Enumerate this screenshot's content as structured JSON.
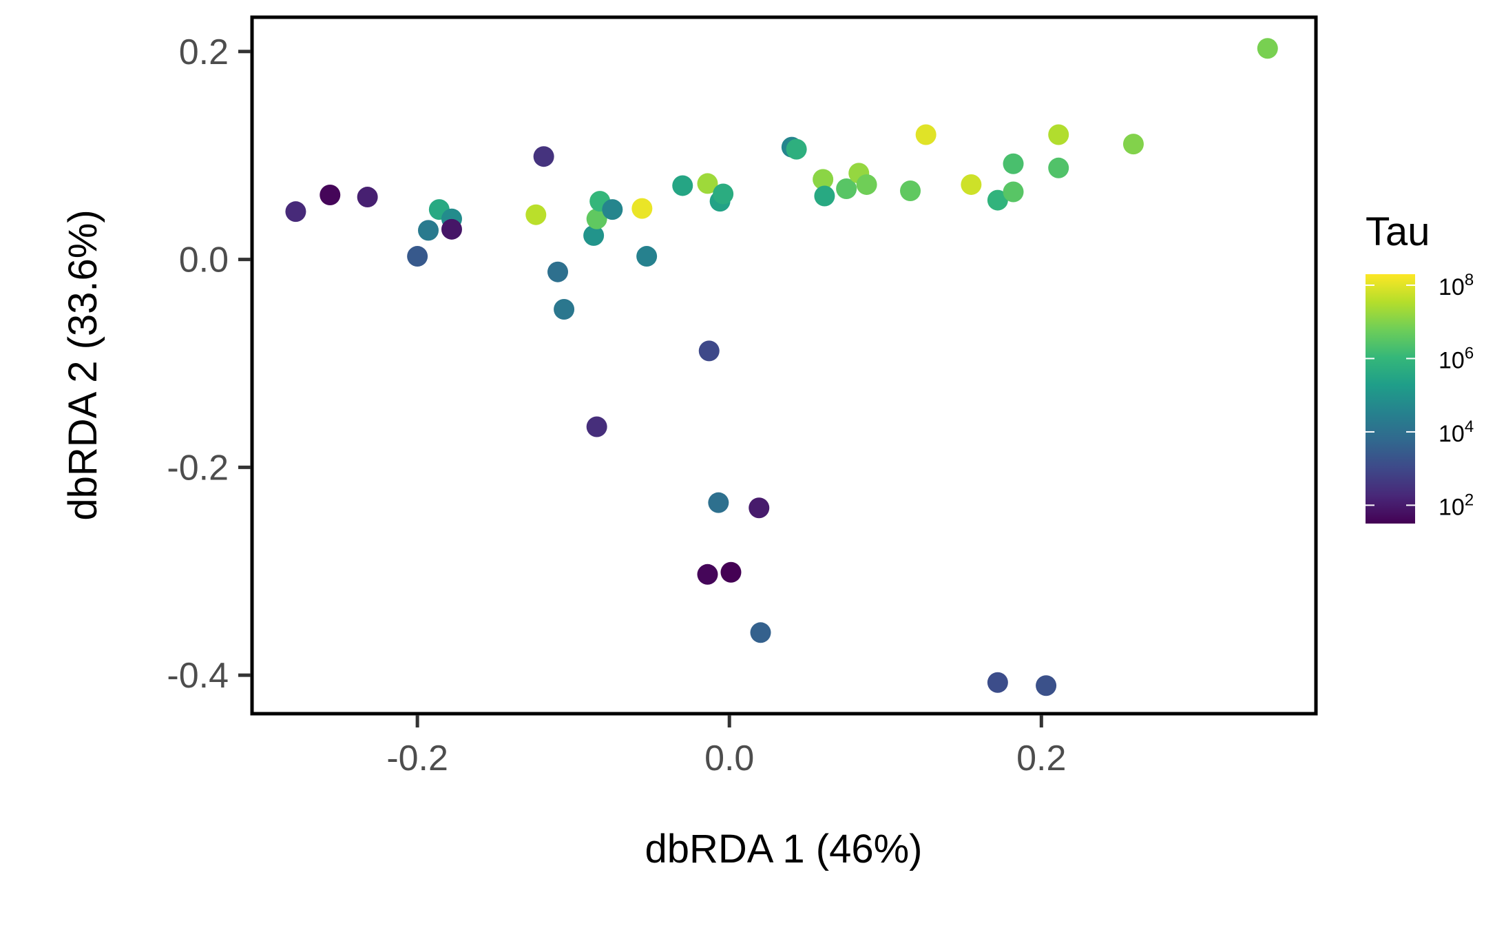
{
  "chart_data": {
    "type": "scatter",
    "title": "",
    "xlabel": "dbRDA 1 (46%)",
    "ylabel": "dbRDA 2 (33.6%)",
    "xlim": [
      -0.306,
      0.376
    ],
    "ylim": [
      -0.437,
      0.233
    ],
    "x_ticks": [
      -0.2,
      0.0,
      0.2
    ],
    "x_tick_labels": [
      "-0.2",
      "0.0",
      "0.2"
    ],
    "y_ticks": [
      0.2,
      0.0,
      -0.2,
      -0.4
    ],
    "y_tick_labels": [
      "0.2",
      "0.0",
      "-0.2",
      "-0.4"
    ],
    "grid": false,
    "color_scale": {
      "name": "Tau",
      "log_base": 10,
      "colormap": "viridis",
      "range_log10": [
        1.5,
        8.3
      ],
      "ticks_log10": [
        2,
        4,
        6,
        8
      ],
      "tick_base": "10",
      "tick_exponents": [
        "2",
        "4",
        "6",
        "8"
      ],
      "colors": [
        "#440154",
        "#482878",
        "#3e4989",
        "#31688e",
        "#26828e",
        "#1f9e89",
        "#35b779",
        "#6ece58",
        "#b5de2b",
        "#fde725"
      ]
    },
    "legend_position": "right",
    "points": [
      {
        "x": -0.278,
        "y": 0.046,
        "tau_log10": 2.3
      },
      {
        "x": -0.256,
        "y": 0.062,
        "tau_log10": 1.6
      },
      {
        "x": -0.232,
        "y": 0.06,
        "tau_log10": 2.1
      },
      {
        "x": -0.2,
        "y": 0.003,
        "tau_log10": 3.4
      },
      {
        "x": -0.193,
        "y": 0.028,
        "tau_log10": 4.3
      },
      {
        "x": -0.186,
        "y": 0.048,
        "tau_log10": 5.6
      },
      {
        "x": -0.178,
        "y": 0.039,
        "tau_log10": 4.8
      },
      {
        "x": -0.178,
        "y": 0.029,
        "tau_log10": 1.9
      },
      {
        "x": -0.124,
        "y": 0.043,
        "tau_log10": 7.6
      },
      {
        "x": -0.119,
        "y": 0.099,
        "tau_log10": 2.5
      },
      {
        "x": -0.11,
        "y": -0.012,
        "tau_log10": 4.0
      },
      {
        "x": -0.106,
        "y": -0.048,
        "tau_log10": 4.2
      },
      {
        "x": -0.087,
        "y": 0.023,
        "tau_log10": 5.0
      },
      {
        "x": -0.085,
        "y": 0.039,
        "tau_log10": 6.6
      },
      {
        "x": -0.083,
        "y": 0.056,
        "tau_log10": 6.0
      },
      {
        "x": -0.075,
        "y": 0.048,
        "tau_log10": 4.6
      },
      {
        "x": -0.085,
        "y": -0.161,
        "tau_log10": 2.4
      },
      {
        "x": -0.056,
        "y": 0.049,
        "tau_log10": 8.1
      },
      {
        "x": -0.053,
        "y": 0.003,
        "tau_log10": 4.5
      },
      {
        "x": -0.03,
        "y": 0.071,
        "tau_log10": 5.5
      },
      {
        "x": -0.014,
        "y": 0.073,
        "tau_log10": 7.3
      },
      {
        "x": -0.006,
        "y": 0.056,
        "tau_log10": 5.4
      },
      {
        "x": -0.004,
        "y": 0.063,
        "tau_log10": 5.7
      },
      {
        "x": -0.013,
        "y": -0.088,
        "tau_log10": 3.0
      },
      {
        "x": -0.007,
        "y": -0.234,
        "tau_log10": 4.0
      },
      {
        "x": -0.014,
        "y": -0.303,
        "tau_log10": 1.6
      },
      {
        "x": 0.001,
        "y": -0.301,
        "tau_log10": 1.5
      },
      {
        "x": 0.019,
        "y": -0.239,
        "tau_log10": 2.0
      },
      {
        "x": 0.02,
        "y": -0.359,
        "tau_log10": 3.6
      },
      {
        "x": 0.04,
        "y": 0.108,
        "tau_log10": 4.6
      },
      {
        "x": 0.043,
        "y": 0.106,
        "tau_log10": 5.8
      },
      {
        "x": 0.06,
        "y": 0.077,
        "tau_log10": 7.1
      },
      {
        "x": 0.061,
        "y": 0.061,
        "tau_log10": 5.6
      },
      {
        "x": 0.075,
        "y": 0.068,
        "tau_log10": 6.5
      },
      {
        "x": 0.083,
        "y": 0.083,
        "tau_log10": 7.2
      },
      {
        "x": 0.088,
        "y": 0.072,
        "tau_log10": 6.8
      },
      {
        "x": 0.116,
        "y": 0.066,
        "tau_log10": 6.6
      },
      {
        "x": 0.126,
        "y": 0.12,
        "tau_log10": 8.0
      },
      {
        "x": 0.155,
        "y": 0.072,
        "tau_log10": 7.8
      },
      {
        "x": 0.172,
        "y": 0.057,
        "tau_log10": 5.9
      },
      {
        "x": 0.182,
        "y": 0.092,
        "tau_log10": 6.3
      },
      {
        "x": 0.182,
        "y": 0.065,
        "tau_log10": 6.5
      },
      {
        "x": 0.211,
        "y": 0.12,
        "tau_log10": 7.5
      },
      {
        "x": 0.211,
        "y": 0.088,
        "tau_log10": 6.4
      },
      {
        "x": 0.259,
        "y": 0.111,
        "tau_log10": 7.0
      },
      {
        "x": 0.345,
        "y": 0.203,
        "tau_log10": 6.9
      },
      {
        "x": 0.172,
        "y": -0.407,
        "tau_log10": 3.1
      },
      {
        "x": 0.203,
        "y": -0.41,
        "tau_log10": 3.2
      }
    ]
  }
}
